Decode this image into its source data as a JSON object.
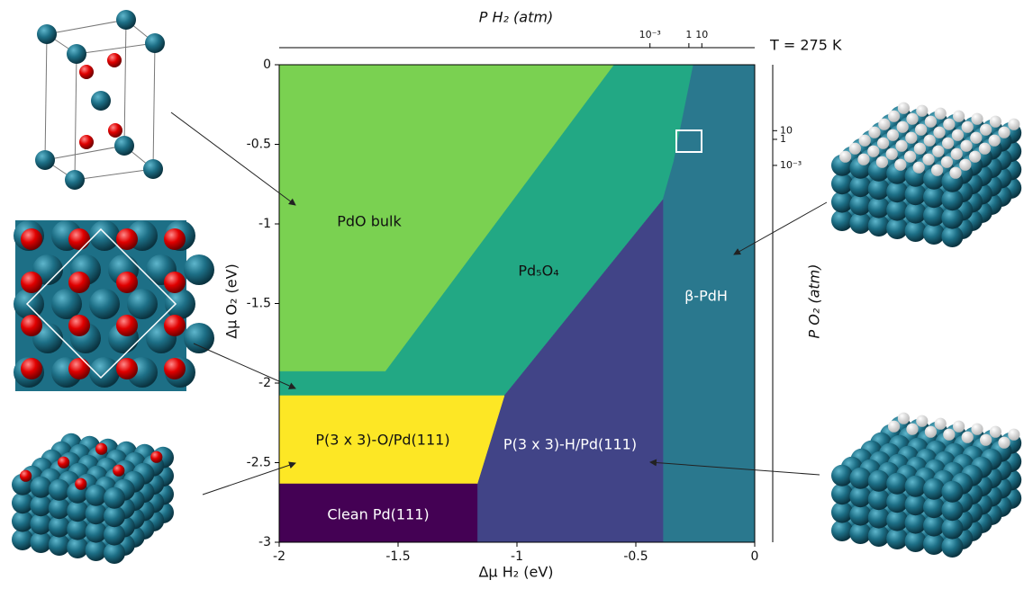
{
  "chart_data": {
    "type": "phase-diagram",
    "title": "T = 275 K",
    "xlabel": "Δμ H₂ (eV)",
    "ylabel": "Δμ O₂ (eV)",
    "x2label": "P H₂ (atm)",
    "y2label": "P O₂ (atm)",
    "xlim": [
      -2,
      0
    ],
    "ylim": [
      -3,
      0
    ],
    "xticks": [
      -2,
      -1.5,
      -1,
      -0.5,
      0
    ],
    "yticks": [
      0,
      -0.5,
      -1,
      -1.5,
      -2,
      -2.5,
      -3
    ],
    "x2scale": "log",
    "x2lim": [
      2.5e-32,
      120000.0
    ],
    "x2ticks": [
      {
        "value": 0.001,
        "label": "10⁻³"
      },
      1,
      10
    ],
    "y2scale": "log",
    "y2lim": [
      4e-47,
      390000000.0
    ],
    "y2ticks": [
      10,
      1,
      {
        "value": 0.001,
        "label": "10⁻³"
      }
    ],
    "regions": [
      {
        "name": "PdO bulk",
        "color": "#7ad151",
        "x": [
          -2,
          -0.591,
          -1.553,
          -2
        ],
        "y": [
          0,
          0,
          -1.927,
          -1.927
        ]
      },
      {
        "name": "Pd₅O₄",
        "color": "#22a884",
        "x": [
          -0.591,
          -0.258,
          -0.341,
          -0.386,
          -1.053,
          -2,
          -2,
          -1.553
        ],
        "y": [
          0,
          0,
          -0.61,
          -0.847,
          -2.079,
          -2.079,
          -1.927,
          -1.927
        ]
      },
      {
        "name": "β-PdH",
        "color": "#2a788e",
        "x": [
          -0.258,
          0,
          0,
          -0.386,
          -0.386,
          -0.341
        ],
        "y": [
          0,
          0,
          -3,
          -3,
          -0.847,
          -0.61
        ]
      },
      {
        "name": "P(3 x 3)-H/Pd(111)",
        "color": "#414487",
        "x": [
          -0.386,
          -0.386,
          -1.167,
          -1.167,
          -1.053
        ],
        "y": [
          -0.847,
          -3,
          -3,
          -2.633,
          -2.079
        ]
      },
      {
        "name": "P(3 x 3)-O/Pd(111)",
        "color": "#fde725",
        "x": [
          -2,
          -1.053,
          -1.167,
          -2
        ],
        "y": [
          -2.079,
          -2.079,
          -2.633,
          -2.633
        ]
      },
      {
        "name": "Clean Pd(111)",
        "color": "#440154",
        "x": [
          -2,
          -1.167,
          -1.167,
          -2
        ],
        "y": [
          -2.633,
          -2.633,
          -3,
          -3
        ]
      }
    ]
  }
}
